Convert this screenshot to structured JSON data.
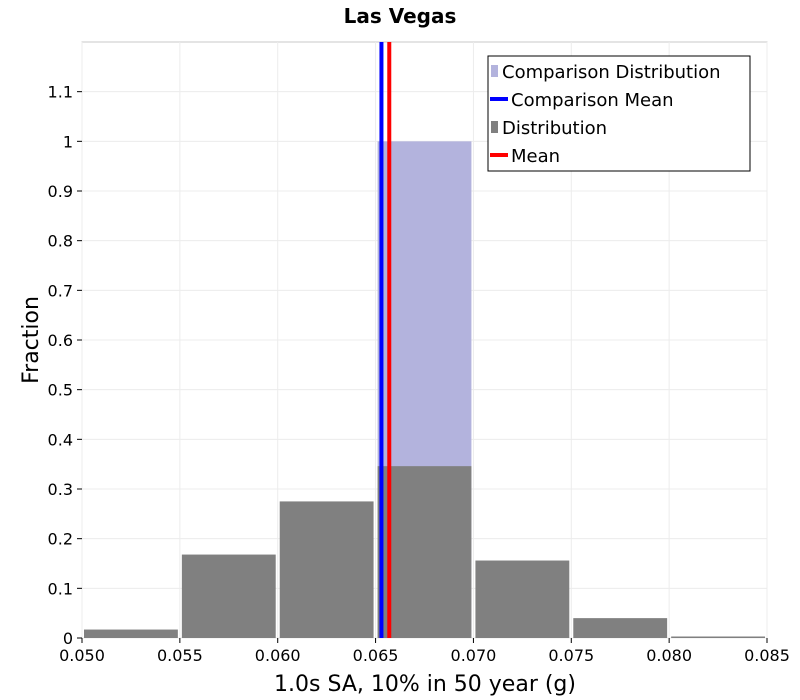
{
  "chart_data": {
    "type": "bar",
    "title": "Las Vegas",
    "xlabel": "1.0s SA, 10% in 50 year (g)",
    "ylabel": "Fraction",
    "xlim": [
      0.05,
      0.085
    ],
    "ylim": [
      0,
      1.2
    ],
    "x_ticks": [
      "0.050",
      "0.055",
      "0.060",
      "0.065",
      "0.070",
      "0.075",
      "0.080",
      "0.085"
    ],
    "y_ticks": [
      "0",
      "0.1",
      "0.2",
      "0.3",
      "0.4",
      "0.5",
      "0.6",
      "0.7",
      "0.8",
      "0.9",
      "1",
      "1.1"
    ],
    "grid": true,
    "legend_position": "top-right",
    "series": [
      {
        "name": "Comparison Distribution",
        "kind": "histogram",
        "color": "#b3b3dd",
        "bins": [
          {
            "x0": 0.065,
            "x1": 0.07,
            "value": 1.0
          }
        ]
      },
      {
        "name": "Comparison Mean",
        "kind": "vline",
        "color": "#0000ff",
        "x": 0.0653
      },
      {
        "name": "Distribution",
        "kind": "histogram",
        "color": "#808080",
        "bins": [
          {
            "x0": 0.05,
            "x1": 0.055,
            "value": 0.017
          },
          {
            "x0": 0.055,
            "x1": 0.06,
            "value": 0.168
          },
          {
            "x0": 0.06,
            "x1": 0.065,
            "value": 0.275
          },
          {
            "x0": 0.065,
            "x1": 0.07,
            "value": 0.346
          },
          {
            "x0": 0.07,
            "x1": 0.075,
            "value": 0.156
          },
          {
            "x0": 0.075,
            "x1": 0.08,
            "value": 0.04
          },
          {
            "x0": 0.08,
            "x1": 0.085,
            "value": 0.003
          }
        ]
      },
      {
        "name": "Mean",
        "kind": "vline",
        "color": "#ff0000",
        "x": 0.0657
      }
    ]
  }
}
